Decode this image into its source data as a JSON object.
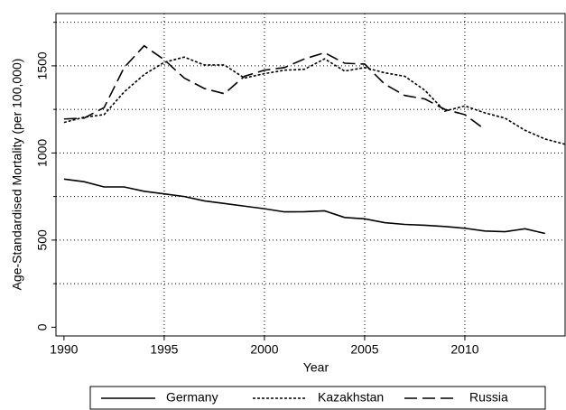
{
  "chart_data": {
    "type": "line",
    "x_label": "Year",
    "y_label": "Age-Standardised Mortality (per 100,000)",
    "x": [
      1990,
      1991,
      1992,
      1993,
      1994,
      1995,
      1996,
      1997,
      1998,
      1999,
      2000,
      2001,
      2002,
      2003,
      2004,
      2005,
      2006,
      2007,
      2008,
      2009,
      2010,
      2011,
      2012,
      2013,
      2014,
      2015
    ],
    "series": [
      {
        "name": "Germany",
        "color": "#000000",
        "dash": "solid",
        "values": [
          850,
          835,
          805,
          805,
          780,
          765,
          750,
          725,
          710,
          695,
          680,
          662,
          663,
          668,
          630,
          622,
          600,
          590,
          585,
          578,
          568,
          552,
          548,
          565,
          538,
          null
        ]
      },
      {
        "name": "Kazakhstan",
        "color": "#000000",
        "dash": "short",
        "values": [
          1175,
          1205,
          1220,
          1350,
          1450,
          1520,
          1550,
          1505,
          1505,
          1430,
          1455,
          1475,
          1480,
          1540,
          1470,
          1490,
          1460,
          1440,
          1360,
          1240,
          1270,
          1230,
          1200,
          1130,
          1080,
          1050
        ]
      },
      {
        "name": "Russia",
        "color": "#000000",
        "dash": "long",
        "values": [
          1195,
          1200,
          1260,
          1490,
          1615,
          1535,
          1430,
          1370,
          1340,
          1440,
          1475,
          1490,
          1540,
          1575,
          1515,
          1510,
          1395,
          1330,
          1310,
          1250,
          1220,
          1135,
          null,
          null,
          null,
          null
        ]
      }
    ],
    "xlim": [
      1989.6,
      2015
    ],
    "xticks": [
      1990,
      1995,
      2000,
      2005,
      2010
    ],
    "ylim": [
      -50,
      1800
    ],
    "yticks": [
      0,
      500,
      1000,
      1500
    ],
    "yminor": [
      250,
      750,
      1250,
      1750
    ],
    "grid": true,
    "legend": "bottom"
  }
}
